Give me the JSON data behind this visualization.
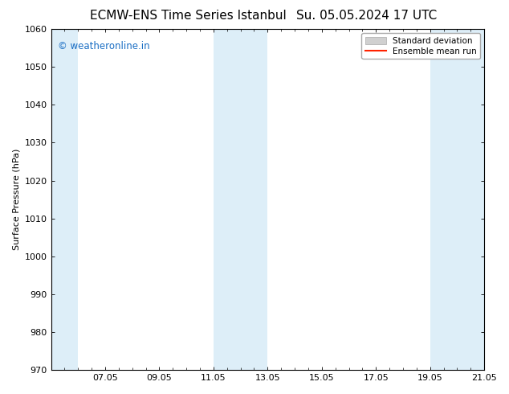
{
  "title_left": "ECMW-ENS Time Series Istanbul",
  "title_right": "Su. 05.05.2024 17 UTC",
  "ylabel": "Surface Pressure (hPa)",
  "ylim": [
    970,
    1060
  ],
  "yticks": [
    970,
    980,
    990,
    1000,
    1010,
    1020,
    1030,
    1040,
    1050,
    1060
  ],
  "xtick_labels": [
    "07.05",
    "09.05",
    "11.05",
    "13.05",
    "15.05",
    "17.05",
    "19.05",
    "21.05"
  ],
  "xtick_positions": [
    2,
    4,
    6,
    8,
    10,
    12,
    14,
    16
  ],
  "x_min": 0,
  "x_max": 16,
  "shaded_bands": [
    {
      "x_start": 0,
      "x_end": 1
    },
    {
      "x_start": 6,
      "x_end": 8
    },
    {
      "x_start": 14,
      "x_end": 16
    }
  ],
  "shaded_color": "#ddeef8",
  "watermark_text": "© weatheronline.in",
  "watermark_color": "#1a6ec4",
  "legend_std_label": "Standard deviation",
  "legend_mean_label": "Ensemble mean run",
  "legend_std_facecolor": "#d0d0d0",
  "legend_std_edgecolor": "#aaaaaa",
  "legend_mean_color": "#ff2200",
  "bg_color": "#ffffff",
  "spine_color": "#000000",
  "title_fontsize": 11,
  "axis_label_fontsize": 8,
  "tick_fontsize": 8,
  "watermark_fontsize": 8.5,
  "legend_fontsize": 7.5
}
